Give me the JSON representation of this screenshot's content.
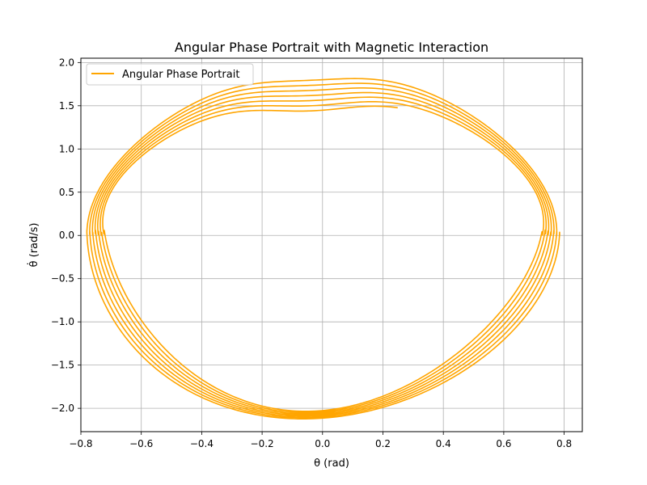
{
  "chart_data": {
    "type": "line",
    "title": "Angular Phase Portrait with Magnetic Interaction",
    "xlabel": "θ (rad)",
    "ylabel": "θ̇ (rad/s)",
    "xlim": [
      -0.8,
      0.86
    ],
    "ylim": [
      -2.27,
      2.05
    ],
    "xticks": [
      -0.8,
      -0.6,
      -0.4,
      -0.2,
      0.0,
      0.2,
      0.4,
      0.6,
      0.8
    ],
    "xtick_labels": [
      "−0.8",
      "−0.6",
      "−0.4",
      "−0.2",
      "0.0",
      "0.2",
      "0.4",
      "0.6",
      "0.8"
    ],
    "yticks": [
      -2.0,
      -1.5,
      -1.0,
      -0.5,
      0.0,
      0.5,
      1.0,
      1.5,
      2.0
    ],
    "ytick_labels": [
      "−2.0",
      "−1.5",
      "−1.0",
      "−0.5",
      "0.0",
      "0.5",
      "1.0",
      "1.5",
      "2.0"
    ],
    "grid": true,
    "legend_position": "top-left",
    "series": [
      {
        "name": "Angular Phase Portrait",
        "color": "#ffa500",
        "trajectory": {
          "theta_start": 0.785,
          "theta_end": 0.72,
          "omega_max_start": 1.87,
          "omega_max_end": 1.54,
          "omega_min_start": -2.05,
          "omega_min_end": -1.95,
          "loops": 6.8,
          "final_point": [
            0.33,
            -1.72
          ]
        }
      }
    ]
  }
}
